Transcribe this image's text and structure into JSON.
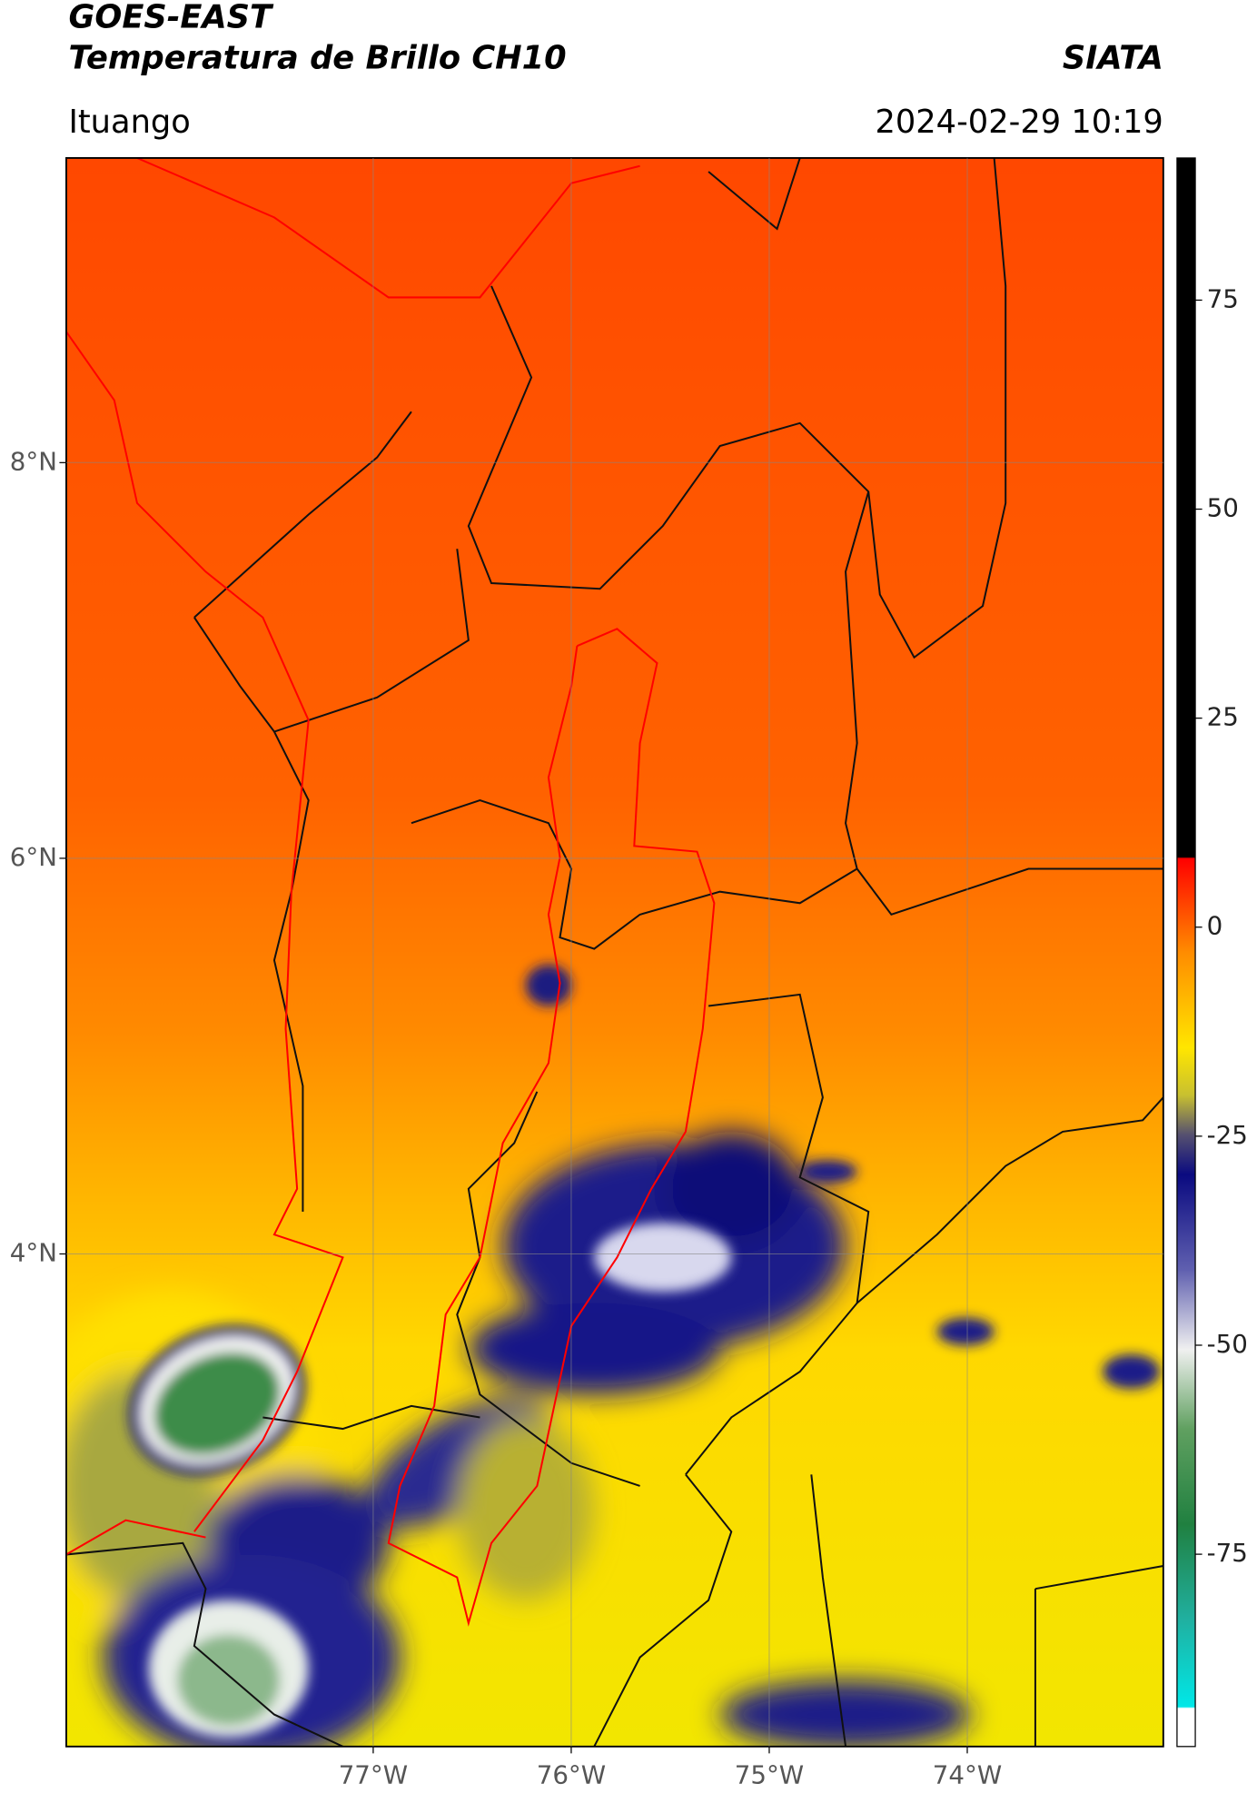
{
  "chart_data": {
    "type": "map",
    "title": "GOES-EAST",
    "subtitle": "Temperatura de Brillo CH10",
    "source": "SIATA",
    "location": "Ituango",
    "datetime": "2024-02-29 10:19",
    "xlim": [
      -78.55,
      -73.01
    ],
    "ylim": [
      1.51,
      9.54
    ],
    "xticks": [
      {
        "value": -77,
        "label": "77°W"
      },
      {
        "value": -76,
        "label": "76°W"
      },
      {
        "value": -75,
        "label": "75°W"
      },
      {
        "value": -74,
        "label": "74°W"
      }
    ],
    "yticks": [
      {
        "value": 8,
        "label": "8°N"
      },
      {
        "value": 6,
        "label": "6°N"
      },
      {
        "value": 4,
        "label": "4°N"
      }
    ],
    "grid": true,
    "colorbar": {
      "lim": [
        -98,
        92
      ],
      "ticks": [
        75,
        50,
        25,
        0,
        -25,
        -50,
        -75
      ]
    }
  }
}
